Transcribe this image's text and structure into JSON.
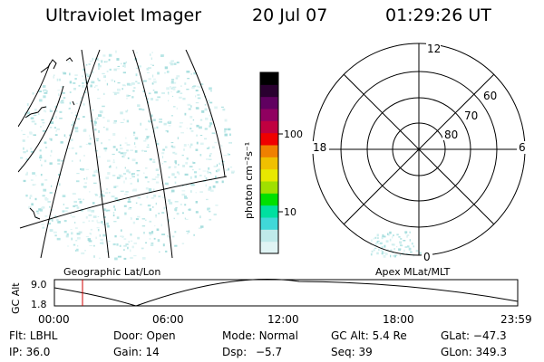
{
  "header": {
    "title": "Ultraviolet Imager",
    "date": "20 Jul 07",
    "time": "01:29:26 UT"
  },
  "colorbar": {
    "unit": "photon cm⁻²s⁻¹",
    "ticks": [
      "100",
      "10"
    ],
    "colors": [
      "#e0f4f4",
      "#bfeaea",
      "#40d8d8",
      "#00e0a0",
      "#00e000",
      "#a0e000",
      "#e8e800",
      "#f0c000",
      "#f08000",
      "#f00000",
      "#c00040",
      "#900060",
      "#600060",
      "#2a0030",
      "#000000"
    ]
  },
  "left_panel": {
    "caption": "Geographic Lat/Lon"
  },
  "right_panel": {
    "caption": "Apex MLat/MLT",
    "mlt_labels": [
      "12",
      "18",
      "6",
      "0"
    ],
    "mlat_labels": [
      "60",
      "70",
      "80"
    ]
  },
  "timeline": {
    "ylabel": "GC Alt",
    "yticks": [
      "9.0",
      "1.8"
    ],
    "xticks": [
      "00:00",
      "06:00",
      "12:00",
      "18:00",
      "23:59"
    ]
  },
  "info": {
    "filter_label": "Flt:",
    "filter_value": "LBHL",
    "door_label": "Door:",
    "door_value": "Open",
    "mode_label": "Mode:",
    "mode_value": "Normal",
    "gcalt_label": "GC Alt:",
    "gcalt_value": "5.4 Re",
    "glat_label": "GLat:",
    "glat_value": "−47.3",
    "ip_label": "IP:",
    "ip_value": "36.0",
    "gain_label": "Gain:",
    "gain_value": "14",
    "dsp_label": "Dsp:",
    "dsp_value": "−5.7",
    "seq_label": "Seq:",
    "seq_value": "39",
    "glon_label": "GLon:",
    "glon_value": "349.3"
  }
}
